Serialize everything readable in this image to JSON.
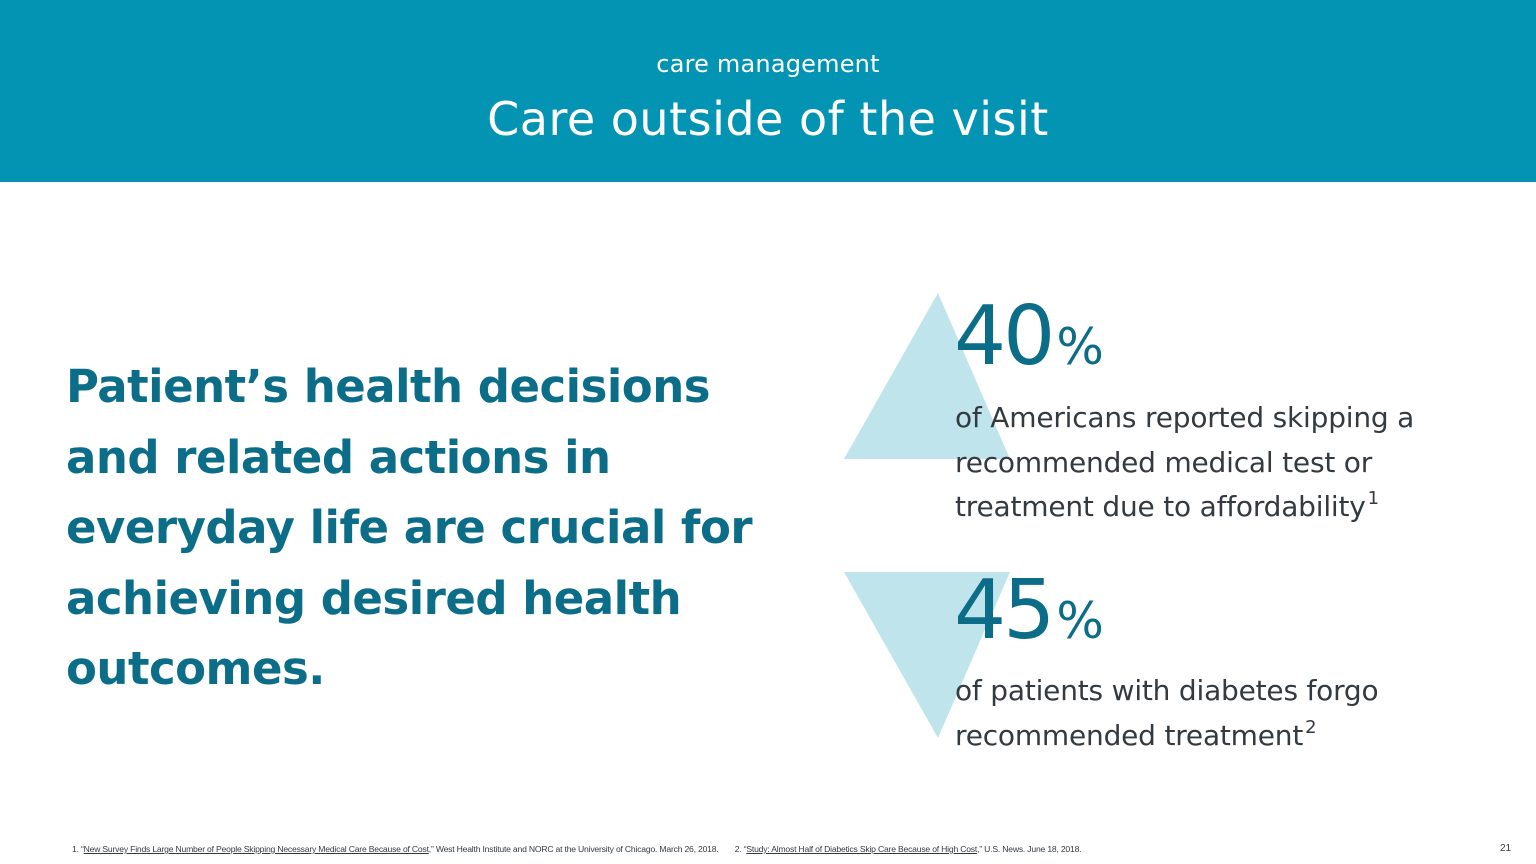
{
  "header": {
    "eyebrow": "care management",
    "title": "Care outside of the visit"
  },
  "main": {
    "lead": "Patient’s health decisions and related actions in everyday life are crucial for achieving desired health outcomes."
  },
  "stats": [
    {
      "number": "40",
      "unit": "%",
      "text": "of Americans reported skipping a recommended medical test or treatment due to affordability",
      "footnote_ref": "1"
    },
    {
      "number": "45",
      "unit": "%",
      "text": "of patients with diabetes forgo recommended treatment",
      "footnote_ref": "2"
    }
  ],
  "footnotes": [
    {
      "prefix": "1. “",
      "link": "New Survey Finds Large Number of People Skipping Necessary Medical Care Because of Cost",
      "suffix": ",” West Health Institute and NORC at the University of Chicago. March 26, 2018."
    },
    {
      "prefix": "2. “",
      "link": "Study: Almost Half of Diabetics Skip Care Because of High Cost",
      "suffix": ",” U.S. News. June 18, 2018."
    }
  ],
  "page_number": "21",
  "colors": {
    "header_bg": "#0494b3",
    "accent_teal": "#0b6d87",
    "triangle_fill": "#bfe4ec",
    "body_text": "#333a40"
  }
}
